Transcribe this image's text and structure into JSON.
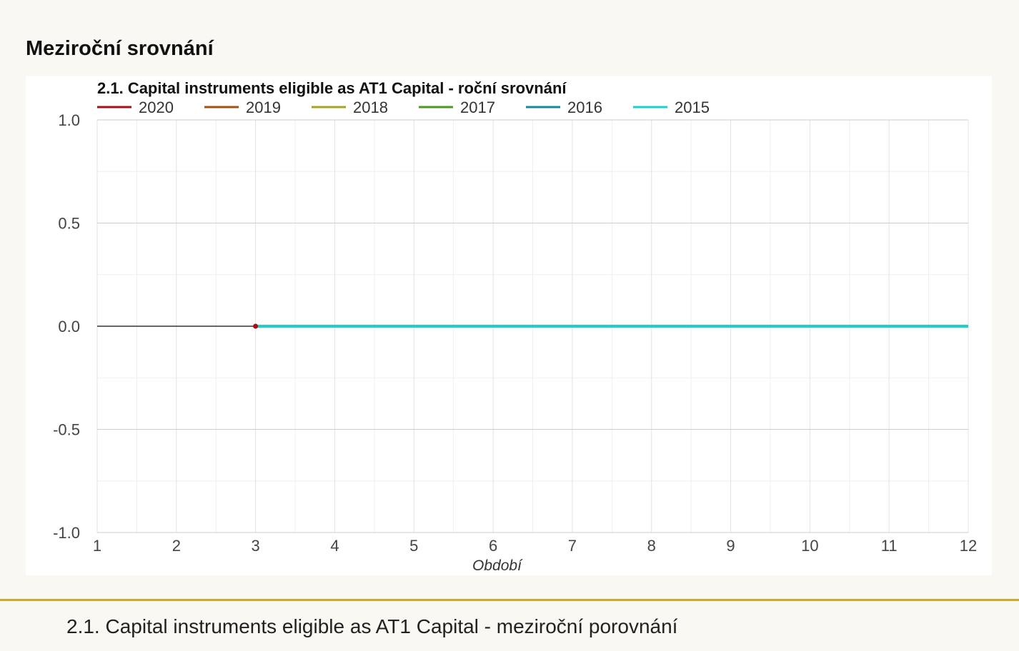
{
  "section": {
    "heading": "Meziroční srovnání"
  },
  "footer": {
    "title": "2.1. Capital instruments eligible as AT1 Capital - meziroční porovnání"
  },
  "chart_data": {
    "type": "line",
    "title": "2.1. Capital instruments eligible as AT1 Capital - roční srovnání",
    "xlabel": "Období",
    "ylabel": "",
    "xlim": [
      1,
      12
    ],
    "ylim": [
      -1.0,
      1.0
    ],
    "x_ticks": [
      "1",
      "2",
      "3",
      "4",
      "5",
      "6",
      "7",
      "8",
      "9",
      "10",
      "11",
      "12"
    ],
    "y_ticks": [
      "1.0",
      "0.5",
      "0.0",
      "-0.5",
      "-1.0"
    ],
    "grid": true,
    "legend_position": "top-left",
    "series": [
      {
        "name": "2020",
        "color": "#a50f15",
        "x": [
          3
        ],
        "y": [
          0
        ]
      },
      {
        "name": "2019",
        "color": "#a3510f",
        "x": [
          3,
          4,
          5,
          6,
          7,
          8,
          9,
          10,
          11,
          12
        ],
        "y": [
          0,
          0,
          0,
          0,
          0,
          0,
          0,
          0,
          0,
          0
        ]
      },
      {
        "name": "2018",
        "color": "#a8a21c",
        "x": [
          3,
          4,
          5,
          6,
          7,
          8,
          9,
          10,
          11,
          12
        ],
        "y": [
          0,
          0,
          0,
          0,
          0,
          0,
          0,
          0,
          0,
          0
        ]
      },
      {
        "name": "2017",
        "color": "#4b9a1a",
        "x": [
          3,
          4,
          5,
          6,
          7,
          8,
          9,
          10,
          11,
          12
        ],
        "y": [
          0,
          0,
          0,
          0,
          0,
          0,
          0,
          0,
          0,
          0
        ]
      },
      {
        "name": "2016",
        "color": "#16889a",
        "x": [
          3,
          4,
          5,
          6,
          7,
          8,
          9,
          10,
          11,
          12
        ],
        "y": [
          0,
          0,
          0,
          0,
          0,
          0,
          0,
          0,
          0,
          0
        ]
      },
      {
        "name": "2015",
        "color": "#1ecfcf",
        "x": [
          3,
          4,
          5,
          6,
          7,
          8,
          9,
          10,
          11,
          12
        ],
        "y": [
          0,
          0,
          0,
          0,
          0,
          0,
          0,
          0,
          0,
          0
        ]
      }
    ],
    "reference_line": {
      "color": "#333333",
      "x": [
        1,
        3
      ],
      "y": [
        0,
        0
      ]
    }
  }
}
